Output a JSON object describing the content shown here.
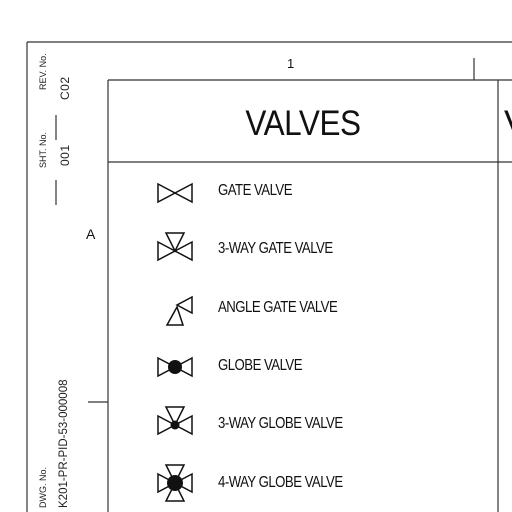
{
  "zone": {
    "column": "1",
    "row": "A"
  },
  "title_block": {
    "rev_label": "REV. No.",
    "rev_value": "C02",
    "sht_label": "SHT. No.",
    "sht_value": "001",
    "dwg_label": "DWG. No.",
    "dwg_value": "K201-PR-PID-53-000008"
  },
  "legend": {
    "title": "VALVES",
    "next_title": "V",
    "items": [
      {
        "icon": "gate-valve-icon",
        "label": "GATE VALVE"
      },
      {
        "icon": "3-way-gate-valve-icon",
        "label": "3-WAY GATE VALVE"
      },
      {
        "icon": "angle-gate-valve-icon",
        "label": "ANGLE GATE VALVE"
      },
      {
        "icon": "globe-valve-icon",
        "label": "GLOBE VALVE"
      },
      {
        "icon": "3-way-globe-valve-icon",
        "label": "3-WAY GLOBE VALVE"
      },
      {
        "icon": "4-way-globe-valve-icon",
        "label": "4-WAY GLOBE VALVE"
      }
    ]
  }
}
